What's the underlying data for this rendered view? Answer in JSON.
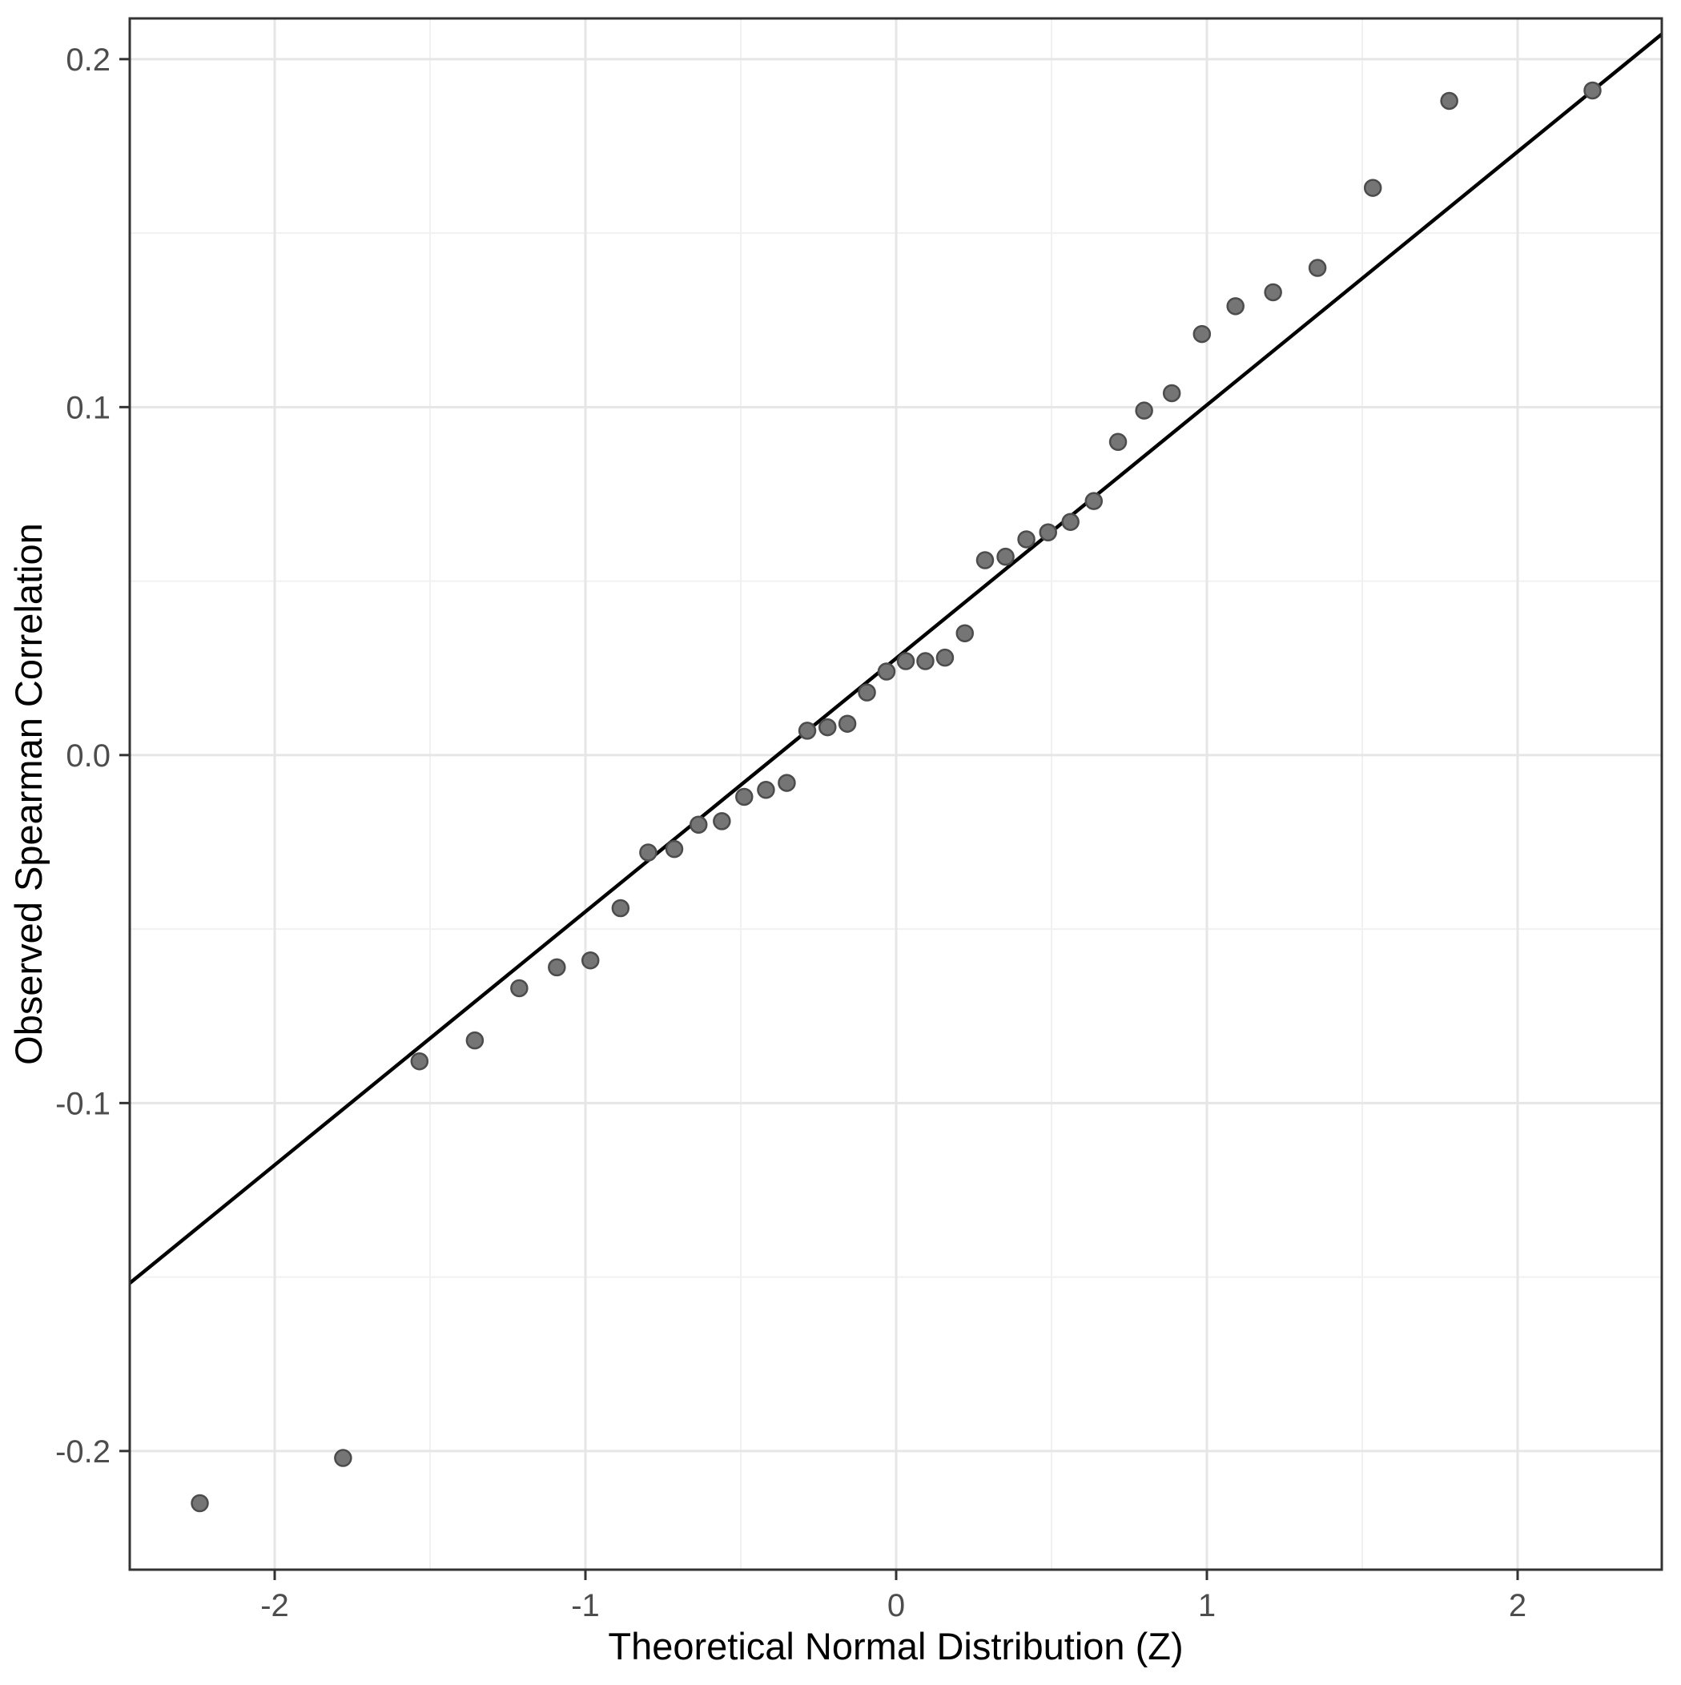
{
  "page": {
    "background_color": "#ffffff"
  },
  "chart_data": {
    "type": "scatter",
    "title": "",
    "xlabel": "Theoretical Normal Distribution (Z)",
    "ylabel": "Observed Spearman Correlation",
    "xlim": [
      -2.4665,
      2.4639
    ],
    "ylim": [
      -0.2341,
      0.2117
    ],
    "x_major_ticks": [
      -2,
      -1,
      0,
      1,
      2
    ],
    "x_tick_labels": [
      "-2",
      "-1",
      "0",
      "1",
      "2"
    ],
    "x_minor_ticks": [
      -1.5,
      -0.5,
      0.5,
      1.5
    ],
    "y_major_ticks": [
      0.2,
      0.1,
      0.0,
      -0.1,
      -0.2
    ],
    "y_tick_labels": [
      "0.2",
      "0.1",
      "0.0",
      "-0.1",
      "-0.2"
    ],
    "y_minor_ticks": [
      0.15,
      0.05,
      -0.05,
      -0.15
    ],
    "grid": true,
    "legend_position": "none",
    "reference_line": {
      "slope": 0.0728,
      "intercept": 0.0278,
      "color": "#000000",
      "width": 4.5
    },
    "points": [
      [
        -2.241,
        -0.215
      ],
      [
        -1.78,
        -0.202
      ],
      [
        -1.534,
        -0.088
      ],
      [
        -1.356,
        -0.082
      ],
      [
        -1.213,
        -0.067
      ],
      [
        -1.092,
        -0.061
      ],
      [
        -0.984,
        -0.059
      ],
      [
        -0.887,
        -0.044
      ],
      [
        -0.798,
        -0.028
      ],
      [
        -0.714,
        -0.027
      ],
      [
        -0.636,
        -0.02
      ],
      [
        -0.561,
        -0.019
      ],
      [
        -0.489,
        -0.012
      ],
      [
        -0.419,
        -0.01
      ],
      [
        -0.352,
        -0.008
      ],
      [
        -0.286,
        0.007
      ],
      [
        -0.221,
        0.008
      ],
      [
        -0.157,
        0.009
      ],
      [
        -0.094,
        0.018
      ],
      [
        -0.031,
        0.024
      ],
      [
        0.031,
        0.027
      ],
      [
        0.094,
        0.027
      ],
      [
        0.157,
        0.028
      ],
      [
        0.221,
        0.035
      ],
      [
        0.286,
        0.056
      ],
      [
        0.352,
        0.057
      ],
      [
        0.419,
        0.062
      ],
      [
        0.489,
        0.064
      ],
      [
        0.561,
        0.067
      ],
      [
        0.636,
        0.073
      ],
      [
        0.714,
        0.09
      ],
      [
        0.798,
        0.099
      ],
      [
        0.887,
        0.104
      ],
      [
        0.984,
        0.121
      ],
      [
        1.092,
        0.129
      ],
      [
        1.213,
        0.133
      ],
      [
        1.356,
        0.14
      ],
      [
        1.534,
        0.163
      ],
      [
        1.78,
        0.188
      ],
      [
        2.241,
        0.191
      ]
    ],
    "colors": {
      "point_fill": "#757575",
      "point_stroke": "#4c4c4c",
      "grid_major": "#e6e6e6",
      "grid_minor": "#f1f1f1",
      "panel_border": "#333333",
      "tick_mark": "#333333",
      "tick_label": "#4d4d4d",
      "axis_title": "#000000",
      "panel_background": "#ffffff"
    },
    "point_radius": 10,
    "point_stroke_width": 2.5
  }
}
